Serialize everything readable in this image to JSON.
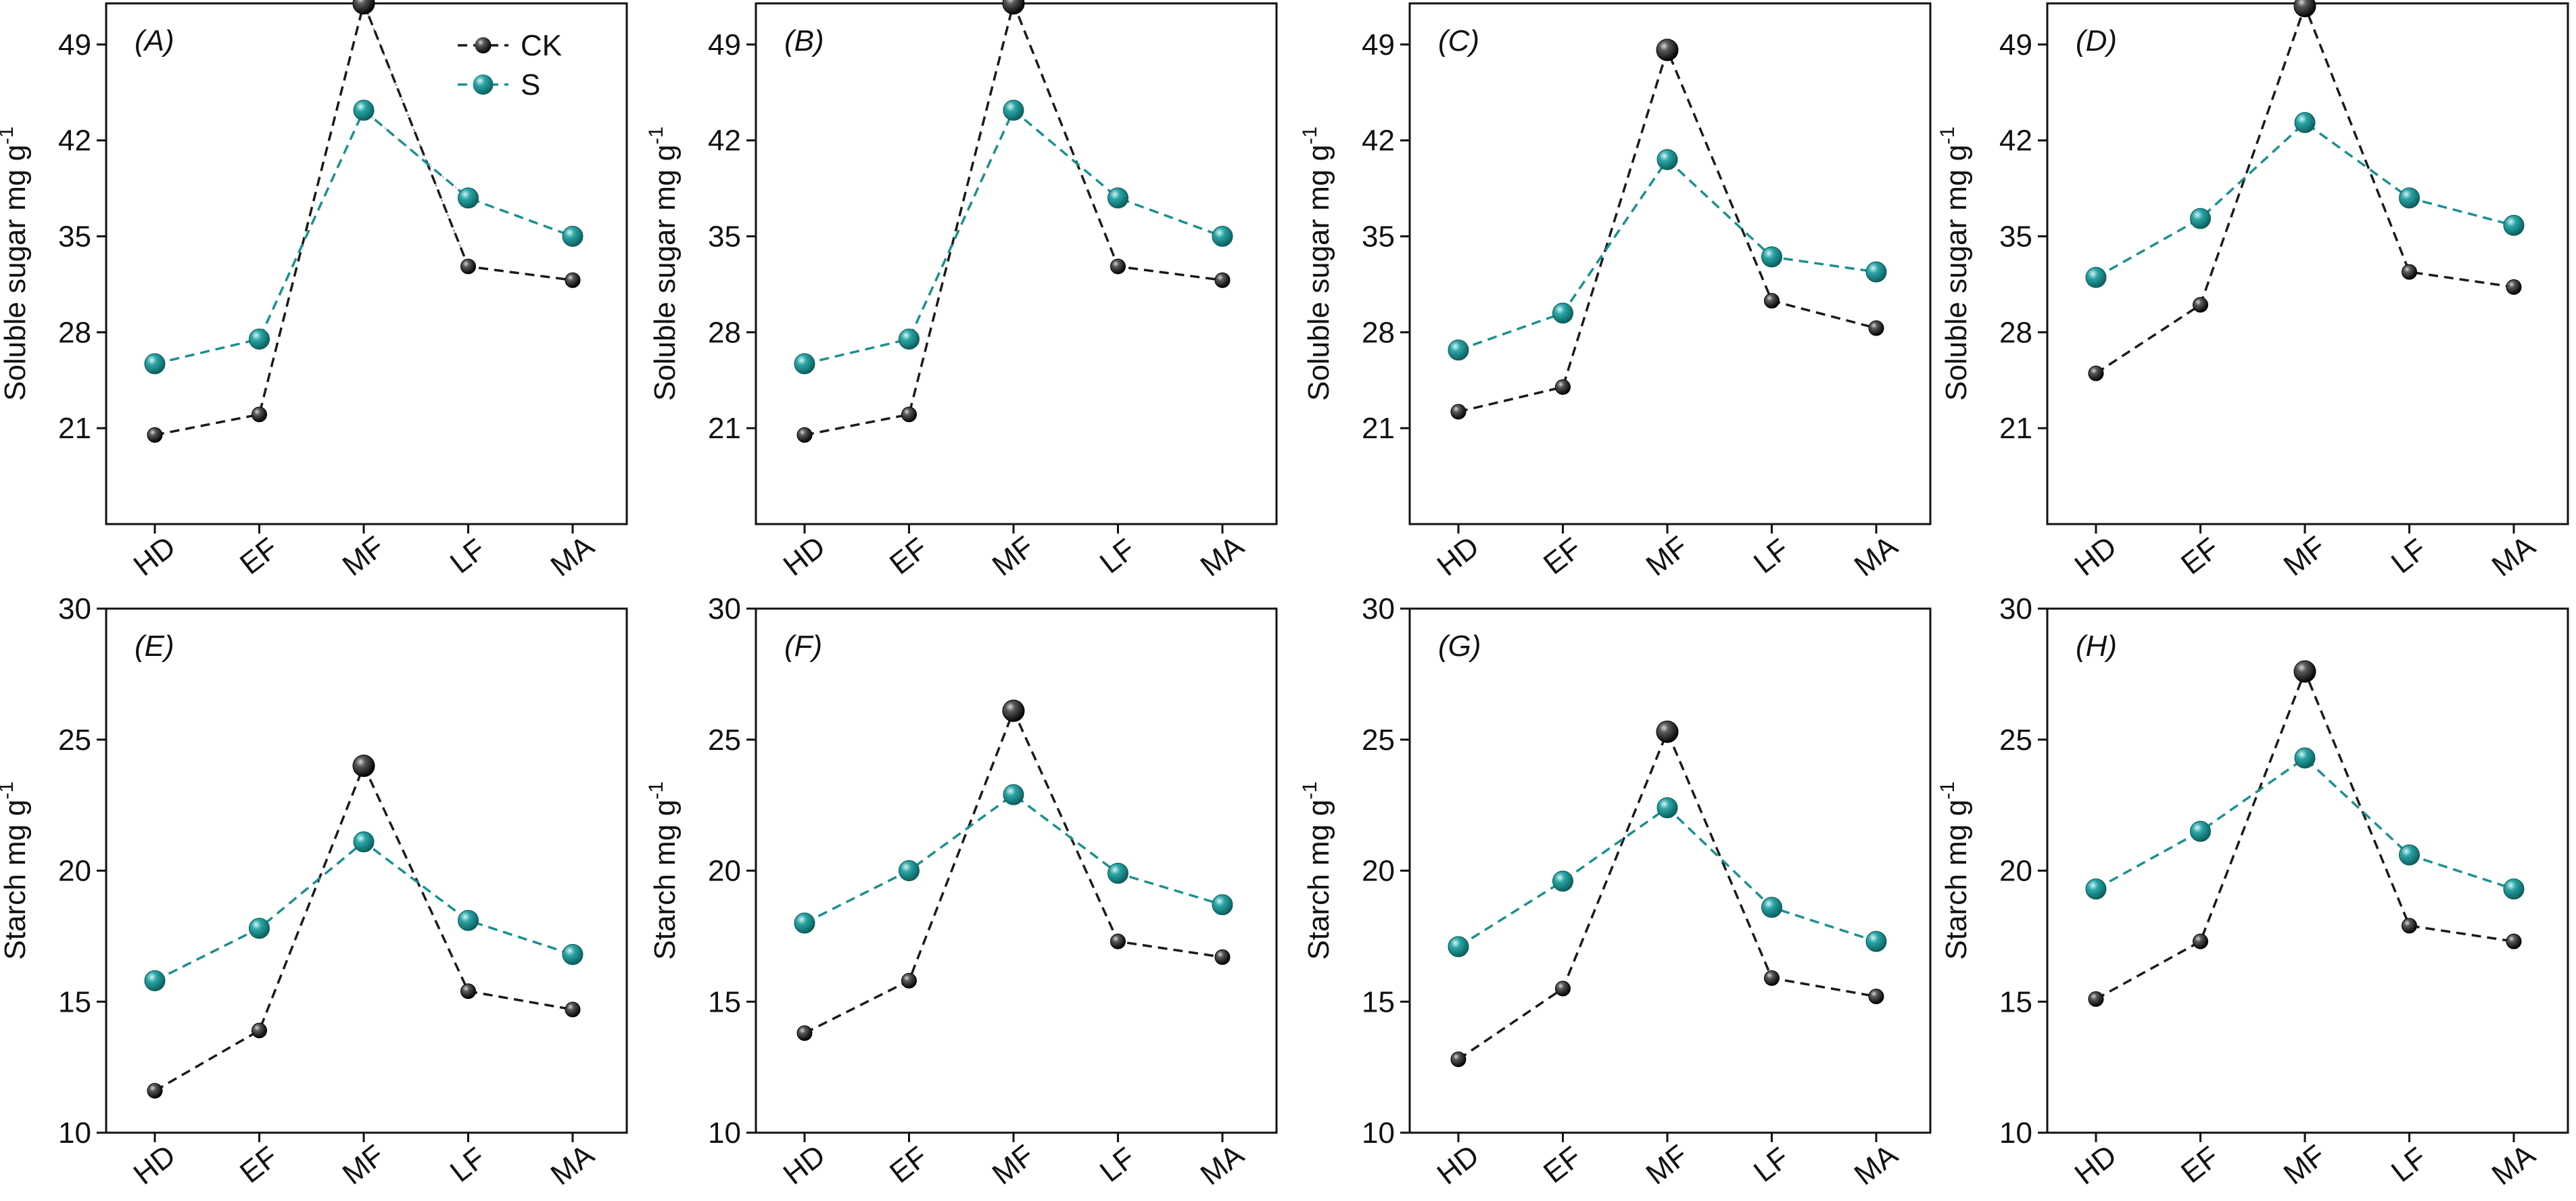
{
  "chart_data": [
    {
      "type": "line",
      "panel_label": "(A)",
      "ylabel": "Soluble sugar mg g",
      "ylabel_sup": "-1",
      "categories": [
        "HD",
        "EF",
        "MF",
        "LF",
        "MA"
      ],
      "ylim": [
        14,
        52
      ],
      "yticks": [
        21,
        28,
        35,
        42,
        49
      ],
      "series": [
        {
          "name": "CK",
          "values": [
            20.5,
            22.0,
            52.0,
            32.8,
            31.8
          ]
        },
        {
          "name": "S",
          "values": [
            25.7,
            27.5,
            44.2,
            37.8,
            35.0
          ]
        }
      ],
      "legend": true,
      "legend_position": "top-right",
      "extra_dotted_lines": true
    },
    {
      "type": "line",
      "panel_label": "(B)",
      "ylabel": "Soluble sugar mg g",
      "ylabel_sup": "-1",
      "categories": [
        "HD",
        "EF",
        "MF",
        "LF",
        "MA"
      ],
      "ylim": [
        14,
        52
      ],
      "yticks": [
        21,
        28,
        35,
        42,
        49
      ],
      "series": [
        {
          "name": "CK",
          "values": [
            20.5,
            22.0,
            52.0,
            32.8,
            31.8
          ]
        },
        {
          "name": "S",
          "values": [
            25.7,
            27.5,
            44.2,
            37.8,
            35.0
          ]
        }
      ],
      "legend": false
    },
    {
      "type": "line",
      "panel_label": "(C)",
      "ylabel": "Soluble sugar mg g",
      "ylabel_sup": "-1",
      "categories": [
        "HD",
        "EF",
        "MF",
        "LF",
        "MA"
      ],
      "ylim": [
        14,
        52
      ],
      "yticks": [
        21,
        28,
        35,
        42,
        49
      ],
      "series": [
        {
          "name": "CK",
          "values": [
            22.2,
            24.0,
            48.6,
            30.3,
            28.3
          ]
        },
        {
          "name": "S",
          "values": [
            26.7,
            29.4,
            40.6,
            33.5,
            32.4
          ]
        }
      ],
      "legend": false
    },
    {
      "type": "line",
      "panel_label": "(D)",
      "ylabel": "Soluble sugar mg g",
      "ylabel_sup": "-1",
      "categories": [
        "HD",
        "EF",
        "MF",
        "LF",
        "MA"
      ],
      "ylim": [
        14,
        52
      ],
      "yticks": [
        21,
        28,
        35,
        42,
        49
      ],
      "series": [
        {
          "name": "CK",
          "values": [
            25.0,
            30.0,
            51.8,
            32.4,
            31.3
          ]
        },
        {
          "name": "S",
          "values": [
            32.0,
            36.3,
            43.3,
            37.8,
            35.8
          ]
        }
      ],
      "legend": false
    },
    {
      "type": "line",
      "panel_label": "(E)",
      "ylabel": "Starch mg g",
      "ylabel_sup": "-1",
      "categories": [
        "HD",
        "EF",
        "MF",
        "LF",
        "MA"
      ],
      "ylim": [
        10,
        30
      ],
      "yticks": [
        10,
        15,
        20,
        25,
        30
      ],
      "series": [
        {
          "name": "CK",
          "values": [
            11.6,
            13.9,
            24.0,
            15.4,
            14.7
          ]
        },
        {
          "name": "S",
          "values": [
            15.8,
            17.8,
            21.1,
            18.1,
            16.8
          ]
        }
      ],
      "legend": false
    },
    {
      "type": "line",
      "panel_label": "(F)",
      "ylabel": "Starch mg g",
      "ylabel_sup": "-1",
      "categories": [
        "HD",
        "EF",
        "MF",
        "LF",
        "MA"
      ],
      "ylim": [
        10,
        30
      ],
      "yticks": [
        10,
        15,
        20,
        25,
        30
      ],
      "series": [
        {
          "name": "CK",
          "values": [
            13.8,
            15.8,
            26.1,
            17.3,
            16.7
          ]
        },
        {
          "name": "S",
          "values": [
            18.0,
            20.0,
            22.9,
            19.9,
            18.7
          ]
        }
      ],
      "legend": false
    },
    {
      "type": "line",
      "panel_label": "(G)",
      "ylabel": "Starch mg g",
      "ylabel_sup": "-1",
      "categories": [
        "HD",
        "EF",
        "MF",
        "LF",
        "MA"
      ],
      "ylim": [
        10,
        30
      ],
      "yticks": [
        10,
        15,
        20,
        25,
        30
      ],
      "series": [
        {
          "name": "CK",
          "values": [
            12.8,
            15.5,
            25.3,
            15.9,
            15.2
          ]
        },
        {
          "name": "S",
          "values": [
            17.1,
            19.6,
            22.4,
            18.6,
            17.3
          ]
        }
      ],
      "legend": false
    },
    {
      "type": "line",
      "panel_label": "(H)",
      "ylabel": "Starch mg g",
      "ylabel_sup": "-1",
      "categories": [
        "HD",
        "EF",
        "MF",
        "LF",
        "MA"
      ],
      "ylim": [
        10,
        30
      ],
      "yticks": [
        10,
        15,
        20,
        25,
        30
      ],
      "series": [
        {
          "name": "CK",
          "values": [
            15.1,
            17.3,
            27.6,
            17.9,
            17.3
          ]
        },
        {
          "name": "S",
          "values": [
            19.3,
            21.5,
            24.3,
            20.6,
            19.3
          ]
        }
      ],
      "legend": false
    }
  ],
  "colors": {
    "CK": "#1a1a1a",
    "S": "#1a9090",
    "axis": "#111111"
  }
}
